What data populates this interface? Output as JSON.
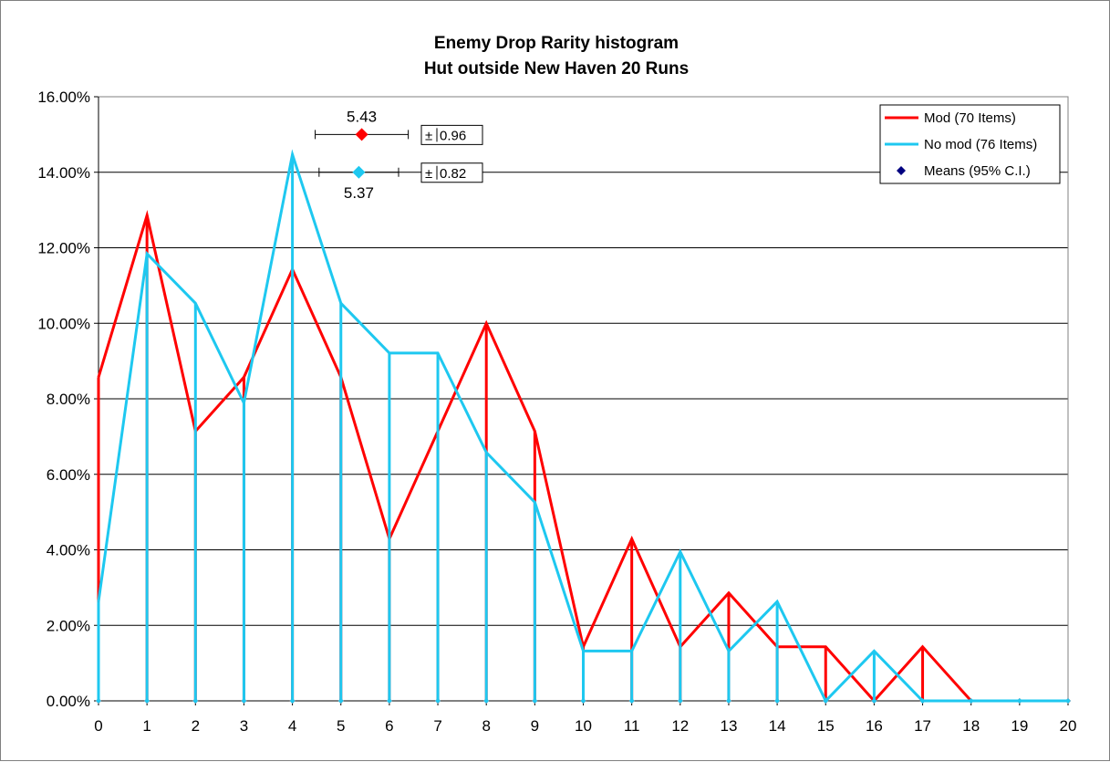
{
  "chart_data": {
    "type": "line",
    "title": "Enemy Drop Rarity histogram",
    "subtitle": "Hut outside New Haven 20 Runs",
    "xlabel": "",
    "ylabel": "",
    "x": [
      0,
      1,
      2,
      3,
      4,
      5,
      6,
      7,
      8,
      9,
      10,
      11,
      12,
      13,
      14,
      15,
      16,
      17,
      18,
      19,
      20
    ],
    "x_tick_labels": [
      "0",
      "1",
      "2",
      "3",
      "4",
      "5",
      "6",
      "7",
      "8",
      "9",
      "10",
      "11",
      "12",
      "13",
      "14",
      "15",
      "16",
      "17",
      "18",
      "19",
      "20"
    ],
    "ylim": [
      0,
      16
    ],
    "y_tick_values": [
      0,
      2,
      4,
      6,
      8,
      10,
      12,
      14,
      16
    ],
    "y_tick_labels": [
      "0.00%",
      "2.00%",
      "4.00%",
      "6.00%",
      "8.00%",
      "10.00%",
      "12.00%",
      "14.00%",
      "16.00%"
    ],
    "grid": "horizontal",
    "legend_position": "top-right",
    "series": [
      {
        "name": "Mod (70 Items)",
        "color": "#ff0000",
        "values": [
          8.57,
          12.86,
          7.14,
          8.57,
          11.43,
          8.57,
          4.29,
          7.14,
          10.0,
          7.14,
          1.43,
          4.29,
          1.43,
          2.86,
          1.43,
          1.43,
          0.0,
          1.43,
          0.0,
          0.0,
          0.0
        ],
        "mean": 5.43,
        "mean_label": "5.43",
        "ci": 0.96,
        "ci_label": "0.96",
        "mean_y": 15.0
      },
      {
        "name": "No mod (76 Items)",
        "color": "#1ec8f0",
        "values": [
          2.63,
          11.84,
          10.53,
          7.89,
          14.47,
          10.53,
          9.21,
          9.21,
          6.58,
          5.26,
          1.32,
          1.32,
          3.95,
          1.32,
          2.63,
          0.0,
          1.32,
          0.0,
          0.0,
          0.0,
          0.0
        ],
        "mean": 5.37,
        "mean_label": "5.37",
        "ci": 0.82,
        "ci_label": "0.82",
        "mean_y": 14.0
      }
    ],
    "means_legend": {
      "name": "Means (95% C.I.)",
      "color": "#000080"
    },
    "pm_symbol": "±"
  }
}
